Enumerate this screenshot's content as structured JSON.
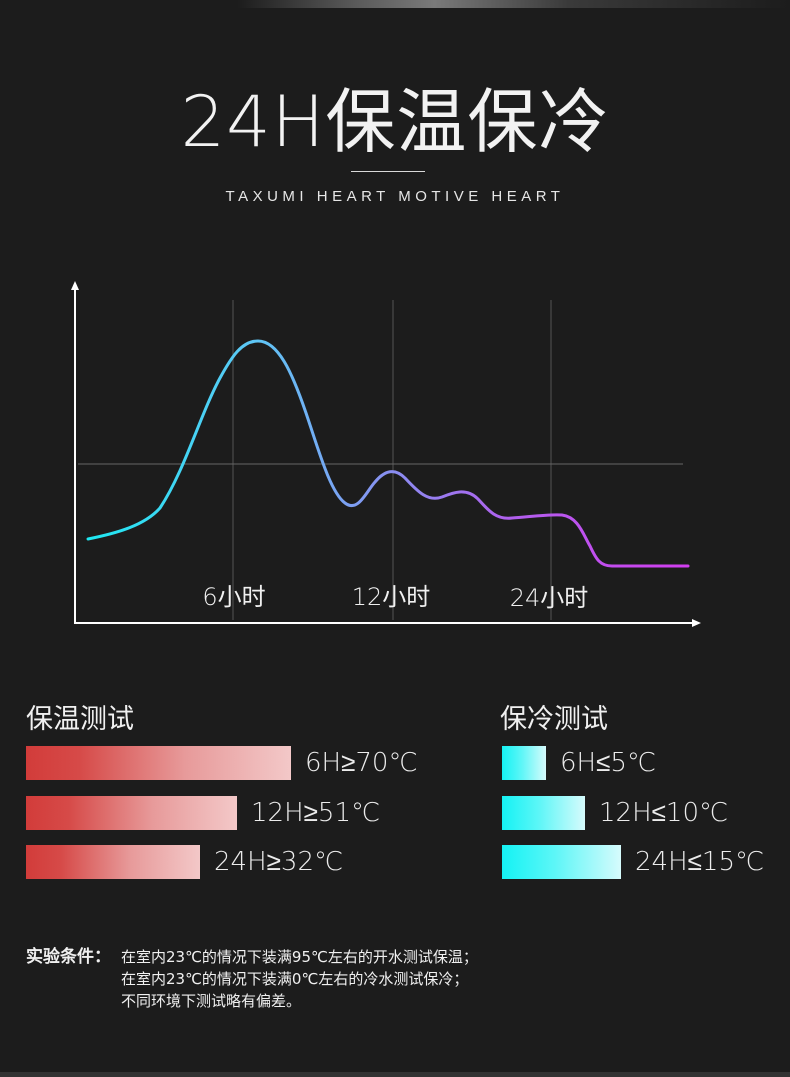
{
  "header": {
    "title": "24H保温保冷",
    "subtitle": "TAXUMI HEART MOTIVE HEART"
  },
  "chart": {
    "x_ticks": [
      "6小时",
      "12小时",
      "24小时"
    ],
    "colors": {
      "start": "#1ee8f2",
      "mid": "#7f9cf2",
      "end": "#d23ef0"
    }
  },
  "hot_test": {
    "title": "保温测试",
    "items": [
      {
        "label": "6H≥70℃",
        "level": 0.93
      },
      {
        "label": "12H≥51℃",
        "level": 0.74
      },
      {
        "label": "24H≥32℃",
        "level": 0.61
      }
    ]
  },
  "cold_test": {
    "title": "保冷测试",
    "items": [
      {
        "label": "6H≤5℃",
        "level": 0.35
      },
      {
        "label": "12H≤10℃",
        "level": 0.66
      },
      {
        "label": "24H≤15℃",
        "level": 0.95
      }
    ]
  },
  "notes": {
    "heading": "实验条件：",
    "lines": [
      "在室内23℃的情况下装满95℃左右的开水测试保温；",
      "在室内23℃的情况下装满0℃左右的冷水测试保冷；",
      "不同环境下测试略有偏差。"
    ]
  }
}
